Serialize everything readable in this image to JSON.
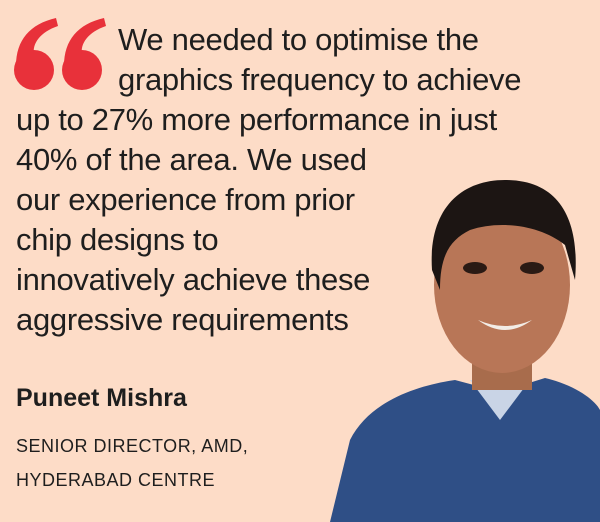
{
  "quote": {
    "lines": [
      "We needed to optimise the",
      "graphics frequency to achieve",
      "up to 27% more performance in just",
      "40% of the area. We used",
      "our experience from prior",
      "chip designs to",
      "innovatively achieve these",
      "aggressive requirements"
    ]
  },
  "person": {
    "name": "Puneet Mishra",
    "title_lines": [
      "SENIOR DIRECTOR, AMD,",
      "HYDERABAD CENTRE"
    ]
  }
}
